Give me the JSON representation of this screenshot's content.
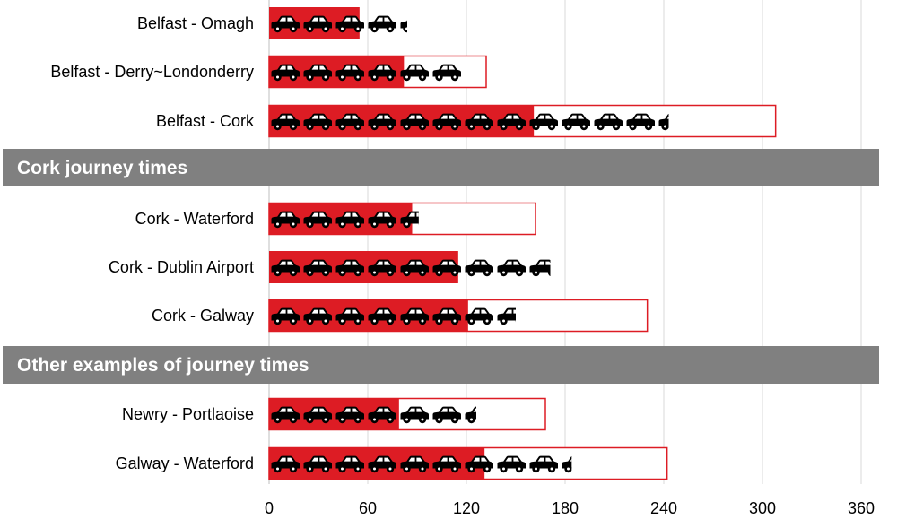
{
  "chart_data": {
    "type": "bar",
    "xlim": [
      0,
      360
    ],
    "xticks": [
      0,
      60,
      120,
      180,
      240,
      300,
      360
    ],
    "grid": true,
    "sections": [
      {
        "heading": "",
        "rows": [
          {
            "label": "Belfast - Omagh",
            "filled": 55,
            "total": 0,
            "cars": 84
          },
          {
            "label": "Belfast - Derry~Londonderry",
            "filled": 82,
            "total": 132,
            "cars": 117
          },
          {
            "label": "Belfast - Cork",
            "filled": 161,
            "total": 308,
            "cars": 243
          }
        ]
      },
      {
        "heading": "Cork journey times",
        "rows": [
          {
            "label": "Cork - Waterford",
            "filled": 87,
            "total": 162,
            "cars": 91
          },
          {
            "label": "Cork - Dublin Airport",
            "filled": 115,
            "total": 0,
            "cars": 171
          },
          {
            "label": "Cork - Galway",
            "filled": 121,
            "total": 230,
            "cars": 150
          }
        ]
      },
      {
        "heading": "Other examples of journey times",
        "rows": [
          {
            "label": "Newry - Portlaoise",
            "filled": 79,
            "total": 168,
            "cars": 126
          },
          {
            "label": "Galway - Waterford",
            "filled": 131,
            "total": 242,
            "cars": 184
          }
        ]
      }
    ]
  },
  "colors": {
    "bar_fill": "#dd1c24",
    "bar_outline": "#dd1c24",
    "section_band": "#808080",
    "grid": "#d9d9d9",
    "car_icon": "#000000"
  },
  "icon": "car-icon"
}
